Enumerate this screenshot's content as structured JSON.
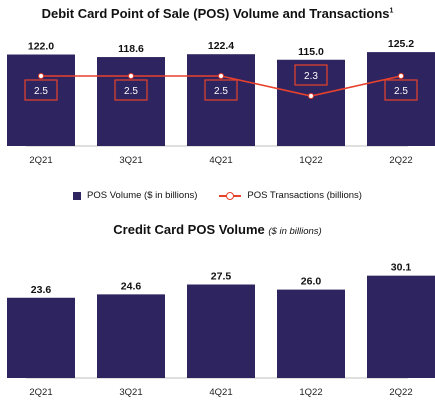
{
  "colors": {
    "bar": "#2e2560",
    "line": "#e8412c",
    "box_border": "#e8412c",
    "box_text": "#2e2560",
    "axis": "#bfbfbf"
  },
  "chart_data": [
    {
      "type": "bar",
      "title": "Debit Card Point of Sale (POS) Volume and Transactions",
      "title_sup": "1",
      "categories": [
        "2Q21",
        "3Q21",
        "4Q21",
        "1Q22",
        "2Q22"
      ],
      "series": [
        {
          "name": "POS Volume ($ in billions)",
          "type": "bar",
          "values": [
            122.0,
            118.6,
            122.4,
            115.0,
            125.2
          ],
          "labels": [
            "122.0",
            "118.6",
            "122.4",
            "115.0",
            "125.2"
          ]
        },
        {
          "name": "POS Transactions (billions)",
          "type": "line",
          "values": [
            2.5,
            2.5,
            2.5,
            2.3,
            2.5
          ],
          "labels": [
            "2.5",
            "2.5",
            "2.5",
            "2.3",
            "2.5"
          ]
        }
      ],
      "legend_position": "bottom"
    },
    {
      "type": "bar",
      "title": "Credit Card POS Volume",
      "title_note": "($ in billions)",
      "categories": [
        "2Q21",
        "3Q21",
        "4Q21",
        "1Q22",
        "2Q22"
      ],
      "values": [
        23.6,
        24.6,
        27.5,
        26.0,
        30.1
      ],
      "labels": [
        "23.6",
        "24.6",
        "27.5",
        "26.0",
        "30.1"
      ]
    }
  ]
}
